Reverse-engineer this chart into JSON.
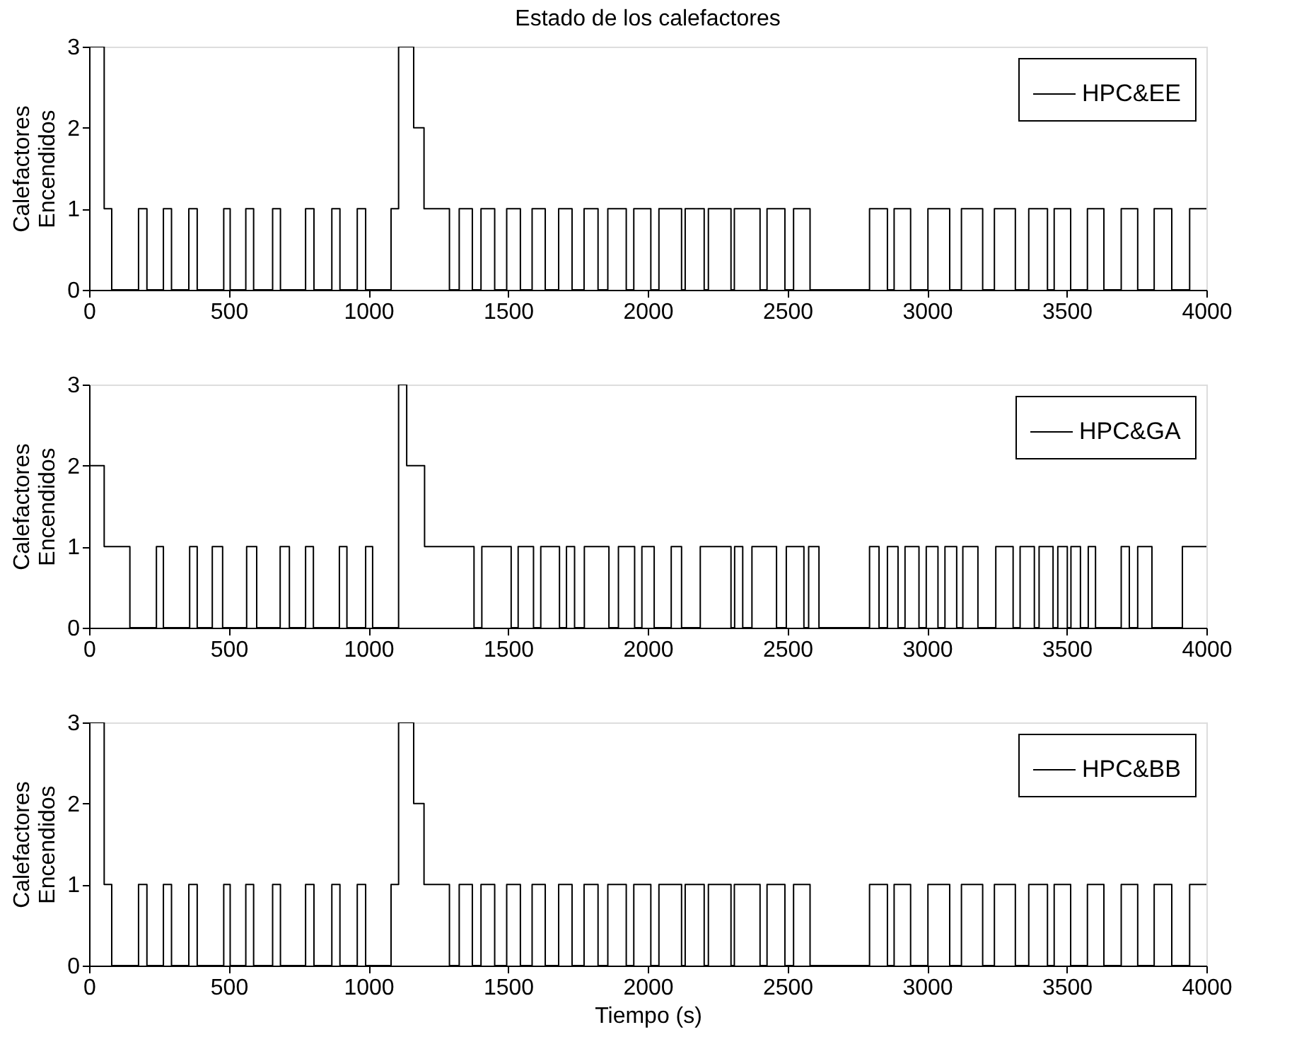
{
  "chart_data": [
    {
      "type": "step",
      "title": "Estado de los calefactores",
      "ylabel": "Calefactores\nEncendidos",
      "xlim": [
        0,
        4000
      ],
      "xticks": [
        0,
        500,
        1000,
        1500,
        2000,
        2500,
        3000,
        3500,
        4000
      ],
      "ylim": [
        0,
        3
      ],
      "yticks": [
        0,
        1,
        2,
        3
      ],
      "legend": "top right",
      "grid": false,
      "series": [
        {
          "name": "HPC&EE",
          "color": "#000000",
          "x": [
            0,
            54,
            81,
            177,
            207,
            266,
            295,
            357,
            387,
            482,
            505,
            561,
            589,
            657,
            685,
            775,
            805,
            869,
            898,
            960,
            990,
            1081,
            1108,
            1162,
            1199,
            1290,
            1325,
            1372,
            1403,
            1452,
            1495,
            1544,
            1586,
            1633,
            1681,
            1729,
            1772,
            1822,
            1857,
            1923,
            1950,
            2011,
            2040,
            2121,
            2134,
            2202,
            2217,
            2298,
            2310,
            2402,
            2427,
            2491,
            2522,
            2581,
            2794,
            2858,
            2882,
            2941,
            3003,
            3081,
            3123,
            3199,
            3241,
            3316,
            3364,
            3431,
            3455,
            3514,
            3574,
            3633,
            3695,
            3754,
            3813,
            3876,
            3940,
            4000
          ],
          "values": [
            3,
            1,
            0,
            1,
            0,
            1,
            0,
            1,
            0,
            1,
            0,
            1,
            0,
            1,
            0,
            1,
            0,
            1,
            0,
            1,
            0,
            1,
            3,
            2,
            1,
            0,
            1,
            0,
            1,
            0,
            1,
            0,
            1,
            0,
            1,
            0,
            1,
            0,
            1,
            0,
            1,
            0,
            1,
            0,
            1,
            0,
            1,
            0,
            1,
            0,
            1,
            0,
            1,
            0,
            1,
            0,
            1,
            0,
            1,
            0,
            1,
            0,
            1,
            0,
            1,
            0,
            1,
            0,
            1,
            0,
            1,
            0,
            1,
            0,
            1,
            1
          ]
        }
      ]
    },
    {
      "type": "step",
      "ylabel": "Calefactores\nEncendidos",
      "xlim": [
        0,
        4000
      ],
      "xticks": [
        0,
        500,
        1000,
        1500,
        2000,
        2500,
        3000,
        3500,
        4000
      ],
      "ylim": [
        0,
        3
      ],
      "yticks": [
        0,
        1,
        2,
        3
      ],
      "legend": "top right",
      "grid": false,
      "series": [
        {
          "name": "HPC&GA",
          "color": "#000000",
          "x": [
            0,
            54,
            146,
            241,
            266,
            360,
            387,
            441,
            478,
            564,
            600,
            684,
            717,
            775,
            803,
            896,
            923,
            990,
            1015,
            1108,
            1137,
            1201,
            1378,
            1406,
            1511,
            1536,
            1591,
            1617,
            1684,
            1709,
            1738,
            1773,
            1861,
            1895,
            1953,
            1979,
            2023,
            2084,
            2121,
            2188,
            2298,
            2311,
            2340,
            2373,
            2461,
            2496,
            2559,
            2576,
            2613,
            2794,
            2828,
            2858,
            2896,
            2921,
            2971,
            2997,
            3039,
            3064,
            3106,
            3128,
            3182,
            3246,
            3308,
            3333,
            3384,
            3401,
            3451,
            3468,
            3502,
            3515,
            3549,
            3577,
            3603,
            3695,
            3724,
            3754,
            3805,
            3914,
            4000
          ],
          "values": [
            2,
            1,
            0,
            1,
            0,
            1,
            0,
            1,
            0,
            1,
            0,
            1,
            0,
            1,
            0,
            1,
            0,
            1,
            0,
            3,
            2,
            1,
            0,
            1,
            0,
            1,
            0,
            1,
            0,
            1,
            0,
            1,
            0,
            1,
            0,
            1,
            0,
            1,
            0,
            1,
            0,
            1,
            0,
            1,
            0,
            1,
            0,
            1,
            0,
            1,
            0,
            1,
            0,
            1,
            0,
            1,
            0,
            1,
            0,
            1,
            0,
            1,
            0,
            1,
            0,
            1,
            0,
            1,
            0,
            1,
            0,
            1,
            0,
            1,
            0,
            1,
            0,
            1,
            1
          ]
        }
      ]
    },
    {
      "type": "step",
      "ylabel": "Calefactores\nEncendidos",
      "xlabel": "Tiempo (s)",
      "xlim": [
        0,
        4000
      ],
      "xticks": [
        0,
        500,
        1000,
        1500,
        2000,
        2500,
        3000,
        3500,
        4000
      ],
      "ylim": [
        0,
        3
      ],
      "yticks": [
        0,
        1,
        2,
        3
      ],
      "legend": "top right",
      "grid": false,
      "series": [
        {
          "name": "HPC&BB",
          "color": "#000000",
          "x": [
            0,
            54,
            81,
            177,
            207,
            266,
            295,
            357,
            387,
            482,
            505,
            561,
            589,
            657,
            685,
            775,
            805,
            869,
            898,
            960,
            990,
            1081,
            1108,
            1162,
            1199,
            1290,
            1325,
            1372,
            1403,
            1452,
            1495,
            1544,
            1586,
            1633,
            1681,
            1729,
            1772,
            1822,
            1857,
            1923,
            1950,
            2011,
            2040,
            2121,
            2134,
            2202,
            2217,
            2298,
            2310,
            2402,
            2427,
            2491,
            2522,
            2581,
            2794,
            2858,
            2882,
            2941,
            3003,
            3081,
            3123,
            3199,
            3241,
            3316,
            3364,
            3431,
            3455,
            3514,
            3574,
            3633,
            3695,
            3754,
            3813,
            3876,
            3940,
            4000
          ],
          "values": [
            3,
            1,
            0,
            1,
            0,
            1,
            0,
            1,
            0,
            1,
            0,
            1,
            0,
            1,
            0,
            1,
            0,
            1,
            0,
            1,
            0,
            1,
            3,
            2,
            1,
            0,
            1,
            0,
            1,
            0,
            1,
            0,
            1,
            0,
            1,
            0,
            1,
            0,
            1,
            0,
            1,
            0,
            1,
            0,
            1,
            0,
            1,
            0,
            1,
            0,
            1,
            0,
            1,
            0,
            1,
            0,
            1,
            0,
            1,
            0,
            1,
            0,
            1,
            0,
            1,
            0,
            1,
            0,
            1,
            0,
            1,
            0,
            1,
            0,
            1,
            1
          ]
        }
      ]
    }
  ]
}
